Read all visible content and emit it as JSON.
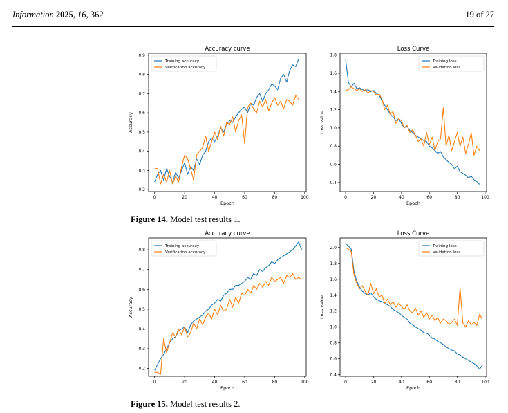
{
  "header": {
    "journal_name": "Information",
    "year": "2025",
    "volume": "16",
    "article": "362",
    "page": "19 of 27"
  },
  "figures": [
    {
      "label": "Figure 14.",
      "caption": "Model test results 1."
    },
    {
      "label": "Figure 15.",
      "caption": "Model test results 2."
    }
  ],
  "chart_data": [
    {
      "id": "fig14-accuracy",
      "type": "line",
      "title": "Accuracy curve",
      "xlabel": "Epoch",
      "ylabel": "Accuracy",
      "xlim": [
        -4,
        101
      ],
      "ylim": [
        0.19,
        0.91
      ],
      "xticks": [
        0,
        20,
        40,
        60,
        80,
        100
      ],
      "yticks": [
        0.2,
        0.3,
        0.4,
        0.5,
        0.6,
        0.7,
        0.8,
        0.9
      ],
      "ytick_labels": [
        "0.2",
        "0.3",
        "0.4",
        "0.5",
        "0.6",
        "0.7",
        "0.8",
        "0.9"
      ],
      "grid": false,
      "legend_position": "upper-left",
      "series": [
        {
          "name": "Training accuracy",
          "color": "#1f77b4",
          "x": [
            0,
            2,
            4,
            6,
            8,
            10,
            12,
            14,
            16,
            18,
            20,
            22,
            24,
            26,
            28,
            30,
            32,
            34,
            36,
            38,
            40,
            42,
            44,
            46,
            48,
            50,
            52,
            54,
            56,
            58,
            60,
            62,
            64,
            66,
            68,
            70,
            72,
            74,
            76,
            78,
            80,
            82,
            84,
            86,
            88,
            90,
            92,
            94,
            96
          ],
          "y": [
            0.24,
            0.28,
            0.3,
            0.25,
            0.31,
            0.27,
            0.24,
            0.29,
            0.26,
            0.3,
            0.34,
            0.28,
            0.32,
            0.3,
            0.36,
            0.33,
            0.38,
            0.4,
            0.45,
            0.47,
            0.45,
            0.48,
            0.52,
            0.5,
            0.54,
            0.56,
            0.55,
            0.58,
            0.6,
            0.62,
            0.63,
            0.6,
            0.65,
            0.64,
            0.68,
            0.7,
            0.66,
            0.7,
            0.72,
            0.75,
            0.74,
            0.72,
            0.78,
            0.8,
            0.76,
            0.82,
            0.85,
            0.84,
            0.88
          ]
        },
        {
          "name": "Verification accuracy",
          "color": "#ff7f0e",
          "x": [
            0,
            2,
            4,
            6,
            8,
            10,
            12,
            14,
            16,
            18,
            20,
            22,
            24,
            26,
            28,
            30,
            32,
            34,
            36,
            38,
            40,
            42,
            44,
            46,
            48,
            50,
            52,
            54,
            56,
            58,
            60,
            62,
            64,
            66,
            68,
            70,
            72,
            74,
            76,
            78,
            80,
            82,
            84,
            86,
            88,
            90,
            92,
            94,
            96
          ],
          "y": [
            0.31,
            0.31,
            0.23,
            0.28,
            0.24,
            0.3,
            0.23,
            0.27,
            0.24,
            0.32,
            0.38,
            0.36,
            0.31,
            0.25,
            0.38,
            0.4,
            0.42,
            0.48,
            0.4,
            0.45,
            0.5,
            0.46,
            0.53,
            0.48,
            0.55,
            0.54,
            0.58,
            0.5,
            0.56,
            0.59,
            0.44,
            0.63,
            0.65,
            0.62,
            0.6,
            0.66,
            0.63,
            0.67,
            0.61,
            0.65,
            0.68,
            0.64,
            0.66,
            0.62,
            0.67,
            0.66,
            0.64,
            0.69,
            0.67
          ]
        }
      ]
    },
    {
      "id": "fig14-loss",
      "type": "line",
      "title": "Loss Curve",
      "xlabel": "Epoch",
      "ylabel": "Loss value",
      "xlim": [
        -4,
        101
      ],
      "ylim": [
        0.3,
        1.82
      ],
      "xticks": [
        0,
        20,
        40,
        60,
        80,
        100
      ],
      "yticks": [
        0.4,
        0.6,
        0.8,
        1.0,
        1.2,
        1.4,
        1.6,
        1.8
      ],
      "ytick_labels": [
        "0.4",
        "0.6",
        "0.8",
        "1.0",
        "1.2",
        "1.4",
        "1.6",
        "1.8"
      ],
      "grid": false,
      "legend_position": "upper-right",
      "series": [
        {
          "name": "Training loss",
          "color": "#1f77b4",
          "x": [
            0,
            2,
            4,
            6,
            8,
            10,
            12,
            14,
            16,
            18,
            20,
            22,
            24,
            26,
            28,
            30,
            32,
            34,
            36,
            38,
            40,
            42,
            44,
            46,
            48,
            50,
            52,
            54,
            56,
            58,
            60,
            62,
            64,
            66,
            68,
            70,
            72,
            74,
            76,
            78,
            80,
            82,
            84,
            86,
            88,
            90,
            92,
            94,
            96
          ],
          "y": [
            1.75,
            1.5,
            1.45,
            1.49,
            1.43,
            1.44,
            1.42,
            1.41,
            1.42,
            1.4,
            1.41,
            1.38,
            1.36,
            1.3,
            1.25,
            1.2,
            1.15,
            1.12,
            1.08,
            1.1,
            1.05,
            1.0,
            1.02,
            0.97,
            0.95,
            0.92,
            0.9,
            0.88,
            0.86,
            0.85,
            0.8,
            0.78,
            0.75,
            0.72,
            0.74,
            0.68,
            0.65,
            0.62,
            0.6,
            0.55,
            0.58,
            0.52,
            0.5,
            0.48,
            0.45,
            0.47,
            0.43,
            0.41,
            0.38
          ]
        },
        {
          "name": "Validation loss",
          "color": "#ff7f0e",
          "x": [
            0,
            2,
            4,
            6,
            8,
            10,
            12,
            14,
            16,
            18,
            20,
            22,
            24,
            26,
            28,
            30,
            32,
            34,
            36,
            38,
            40,
            42,
            44,
            46,
            48,
            50,
            52,
            54,
            56,
            58,
            60,
            62,
            64,
            66,
            68,
            70,
            72,
            74,
            76,
            78,
            80,
            82,
            84,
            86,
            88,
            90,
            92,
            94,
            96
          ],
          "y": [
            1.41,
            1.42,
            1.45,
            1.43,
            1.41,
            1.43,
            1.4,
            1.42,
            1.38,
            1.41,
            1.4,
            1.36,
            1.37,
            1.32,
            1.2,
            1.25,
            1.15,
            1.18,
            1.05,
            1.1,
            1.08,
            1.0,
            1.03,
            0.95,
            0.98,
            0.92,
            0.85,
            0.88,
            0.8,
            0.95,
            0.82,
            0.9,
            0.75,
            0.85,
            0.88,
            1.22,
            0.8,
            0.92,
            0.75,
            0.85,
            0.95,
            0.8,
            0.9,
            0.72,
            0.82,
            0.95,
            0.7,
            0.8,
            0.75
          ]
        }
      ]
    },
    {
      "id": "fig15-accuracy",
      "type": "line",
      "title": "Accuracy curve",
      "xlabel": "Epoch",
      "ylabel": "Accuracy",
      "xlim": [
        -4,
        101
      ],
      "ylim": [
        0.16,
        0.86
      ],
      "xticks": [
        0,
        20,
        40,
        60,
        80,
        100
      ],
      "yticks": [
        0.2,
        0.3,
        0.4,
        0.5,
        0.6,
        0.7,
        0.8
      ],
      "ytick_labels": [
        "0.2",
        "0.3",
        "0.4",
        "0.5",
        "0.6",
        "0.7",
        "0.8"
      ],
      "grid": false,
      "legend_position": "upper-left",
      "series": [
        {
          "name": "Training accuracy",
          "color": "#1f77b4",
          "x": [
            0,
            2,
            4,
            6,
            8,
            10,
            12,
            14,
            16,
            18,
            20,
            22,
            24,
            26,
            28,
            30,
            32,
            34,
            36,
            38,
            40,
            42,
            44,
            46,
            48,
            50,
            52,
            54,
            56,
            58,
            60,
            62,
            64,
            66,
            68,
            70,
            72,
            74,
            76,
            78,
            80,
            82,
            84,
            86,
            88,
            90,
            92,
            94,
            96,
            98
          ],
          "y": [
            0.19,
            0.22,
            0.25,
            0.27,
            0.3,
            0.33,
            0.35,
            0.36,
            0.39,
            0.4,
            0.41,
            0.38,
            0.42,
            0.44,
            0.45,
            0.46,
            0.47,
            0.49,
            0.5,
            0.52,
            0.53,
            0.55,
            0.54,
            0.57,
            0.58,
            0.6,
            0.6,
            0.62,
            0.62,
            0.63,
            0.64,
            0.66,
            0.65,
            0.68,
            0.67,
            0.7,
            0.69,
            0.71,
            0.72,
            0.74,
            0.73,
            0.75,
            0.76,
            0.77,
            0.78,
            0.79,
            0.8,
            0.82,
            0.84,
            0.8
          ]
        },
        {
          "name": "Verification accuracy",
          "color": "#ff7f0e",
          "x": [
            0,
            2,
            4,
            6,
            8,
            10,
            12,
            14,
            16,
            18,
            20,
            22,
            24,
            26,
            28,
            30,
            32,
            34,
            36,
            38,
            40,
            42,
            44,
            46,
            48,
            50,
            52,
            54,
            56,
            58,
            60,
            62,
            64,
            66,
            68,
            70,
            72,
            74,
            76,
            78,
            80,
            82,
            84,
            86,
            88,
            90,
            92,
            94,
            96,
            98
          ],
          "y": [
            0.18,
            0.18,
            0.17,
            0.35,
            0.28,
            0.33,
            0.38,
            0.36,
            0.4,
            0.37,
            0.41,
            0.36,
            0.38,
            0.43,
            0.4,
            0.45,
            0.42,
            0.46,
            0.48,
            0.45,
            0.5,
            0.47,
            0.52,
            0.49,
            0.5,
            0.55,
            0.51,
            0.56,
            0.53,
            0.58,
            0.57,
            0.6,
            0.58,
            0.62,
            0.6,
            0.63,
            0.61,
            0.64,
            0.62,
            0.66,
            0.64,
            0.65,
            0.66,
            0.63,
            0.67,
            0.66,
            0.68,
            0.65,
            0.66,
            0.65
          ]
        }
      ]
    },
    {
      "id": "fig15-loss",
      "type": "line",
      "title": "Loss Curve",
      "xlabel": "Epoch",
      "ylabel": "Loss value",
      "xlim": [
        -4,
        101
      ],
      "ylim": [
        0.38,
        2.12
      ],
      "xticks": [
        0,
        20,
        40,
        60,
        80,
        100
      ],
      "yticks": [
        0.4,
        0.6,
        0.8,
        1.0,
        1.2,
        1.4,
        1.6,
        1.8,
        2.0
      ],
      "ytick_labels": [
        "0.4",
        "0.6",
        "0.8",
        "1.0",
        "1.2",
        "1.4",
        "1.6",
        "1.8",
        "2.0"
      ],
      "grid": false,
      "legend_position": "upper-right",
      "series": [
        {
          "name": "Training loss",
          "color": "#1f77b4",
          "x": [
            0,
            2,
            4,
            6,
            8,
            10,
            12,
            14,
            16,
            18,
            20,
            22,
            24,
            26,
            28,
            30,
            32,
            34,
            36,
            38,
            40,
            42,
            44,
            46,
            48,
            50,
            52,
            54,
            56,
            58,
            60,
            62,
            64,
            66,
            68,
            70,
            72,
            74,
            76,
            78,
            80,
            82,
            84,
            86,
            88,
            90,
            92,
            94,
            96,
            98
          ],
          "y": [
            2.05,
            2.02,
            1.98,
            1.7,
            1.58,
            1.5,
            1.45,
            1.42,
            1.4,
            1.43,
            1.38,
            1.35,
            1.33,
            1.32,
            1.3,
            1.28,
            1.26,
            1.22,
            1.2,
            1.18,
            1.15,
            1.12,
            1.1,
            1.05,
            1.03,
            1.0,
            0.98,
            0.96,
            0.93,
            0.92,
            0.9,
            0.86,
            0.85,
            0.82,
            0.8,
            0.78,
            0.75,
            0.73,
            0.71,
            0.7,
            0.66,
            0.65,
            0.62,
            0.6,
            0.58,
            0.56,
            0.54,
            0.51,
            0.47,
            0.52
          ]
        },
        {
          "name": "Validation loss",
          "color": "#ff7f0e",
          "x": [
            0,
            2,
            4,
            6,
            8,
            10,
            12,
            14,
            16,
            18,
            20,
            22,
            24,
            26,
            28,
            30,
            32,
            34,
            36,
            38,
            40,
            42,
            44,
            46,
            48,
            50,
            52,
            54,
            56,
            58,
            60,
            62,
            64,
            66,
            68,
            70,
            72,
            74,
            76,
            78,
            80,
            82,
            84,
            86,
            88,
            90,
            92,
            94,
            96,
            98
          ],
          "y": [
            2.0,
            1.98,
            1.95,
            1.65,
            1.55,
            1.48,
            1.52,
            1.45,
            1.4,
            1.55,
            1.42,
            1.48,
            1.38,
            1.4,
            1.3,
            1.35,
            1.28,
            1.32,
            1.25,
            1.3,
            1.26,
            1.22,
            1.28,
            1.2,
            1.18,
            1.24,
            1.15,
            1.2,
            1.12,
            1.18,
            1.1,
            1.15,
            1.08,
            1.12,
            1.05,
            1.1,
            1.08,
            1.03,
            1.06,
            1.1,
            1.02,
            1.5,
            1.05,
            1.0,
            1.08,
            1.03,
            1.06,
            1.02,
            1.16,
            1.1
          ]
        }
      ]
    }
  ]
}
